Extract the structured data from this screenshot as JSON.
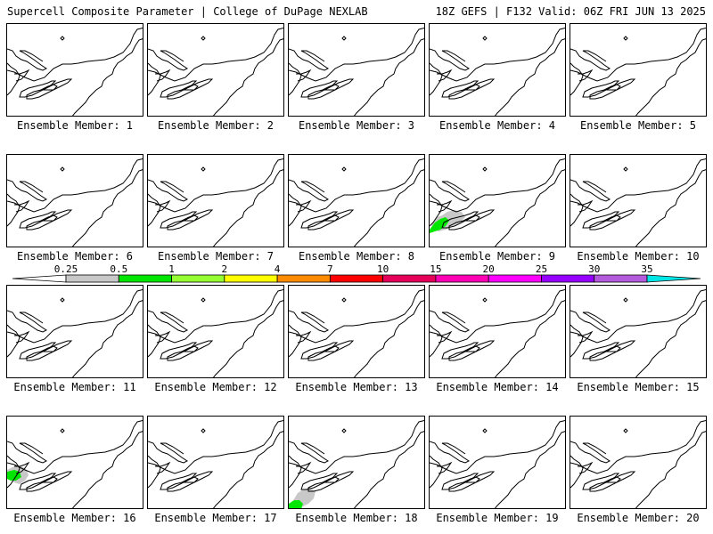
{
  "header": {
    "title_left": "Supercell Composite Parameter | College of DuPage NEXLAB",
    "title_right": "18Z GEFS | F132 Valid: 06Z FRI JUN 13 2025"
  },
  "colorbar": {
    "labels": [
      "0.25",
      "0.5",
      "1",
      "2",
      "4",
      "7",
      "10",
      "15",
      "20",
      "25",
      "30",
      "35"
    ],
    "colors": [
      "#c8c8c8",
      "#00e600",
      "#96ff32",
      "#ffff00",
      "#ff8c00",
      "#ff0000",
      "#e6005a",
      "#ff00b4",
      "#ff00ff",
      "#9600ff",
      "#b45adc",
      "#00e6e6"
    ]
  },
  "panels": [
    {
      "label": "Ensemble Member: 1",
      "shading": []
    },
    {
      "label": "Ensemble Member: 2",
      "shading": []
    },
    {
      "label": "Ensemble Member: 3",
      "shading": []
    },
    {
      "label": "Ensemble Member: 4",
      "shading": []
    },
    {
      "label": "Ensemble Member: 5",
      "shading": []
    },
    {
      "label": "Ensemble Member: 6",
      "shading": []
    },
    {
      "label": "Ensemble Member: 7",
      "shading": []
    },
    {
      "label": "Ensemble Member: 8",
      "shading": []
    },
    {
      "label": "Ensemble Member: 9",
      "shading": [
        "0.25",
        "0.5"
      ]
    },
    {
      "label": "Ensemble Member: 10",
      "shading": []
    },
    {
      "label": "Ensemble Member: 11",
      "shading": []
    },
    {
      "label": "Ensemble Member: 12",
      "shading": []
    },
    {
      "label": "Ensemble Member: 13",
      "shading": []
    },
    {
      "label": "Ensemble Member: 14",
      "shading": []
    },
    {
      "label": "Ensemble Member: 15",
      "shading": []
    },
    {
      "label": "Ensemble Member: 16",
      "shading": [
        "0.25",
        "0.5"
      ]
    },
    {
      "label": "Ensemble Member: 17",
      "shading": []
    },
    {
      "label": "Ensemble Member: 18",
      "shading": [
        "0.25",
        "0.5"
      ]
    },
    {
      "label": "Ensemble Member: 19",
      "shading": []
    },
    {
      "label": "Ensemble Member: 20",
      "shading": []
    }
  ]
}
